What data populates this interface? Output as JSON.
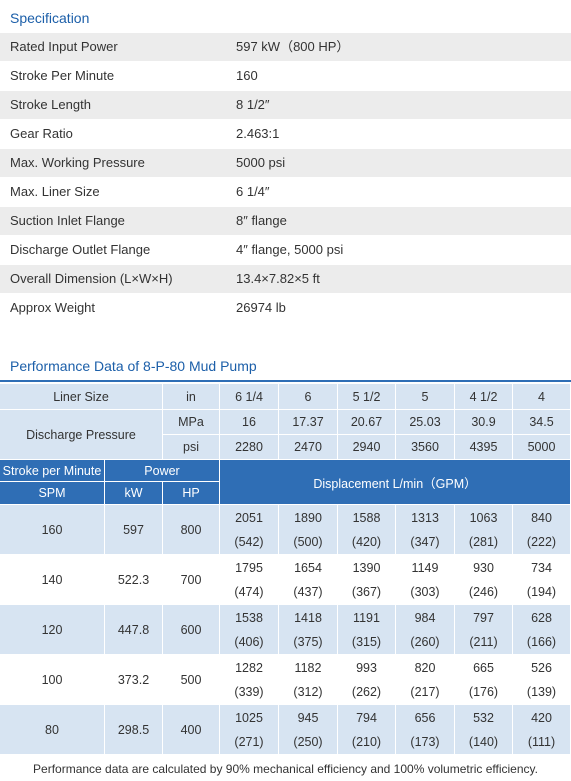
{
  "specification": {
    "title": "Specification",
    "rows": [
      [
        "Rated Input Power",
        "597 kW（800 HP）"
      ],
      [
        "Stroke Per Minute",
        "160"
      ],
      [
        "Stroke Length",
        "8 1/2″"
      ],
      [
        "Gear Ratio",
        "2.463:1"
      ],
      [
        "Max. Working Pressure",
        "5000 psi"
      ],
      [
        "Max. Liner Size",
        "6 1/4″"
      ],
      [
        "Suction Inlet Flange",
        "8″  flange"
      ],
      [
        "Discharge Outlet Flange",
        "4″ flange, 5000 psi"
      ],
      [
        "Overall Dimension (L×W×H)",
        "13.4×7.82×5 ft"
      ],
      [
        "Approx Weight",
        "26974 lb"
      ]
    ]
  },
  "performance": {
    "title": "Performance Data of 8-P-80 Mud Pump",
    "liner_size": {
      "label": "Liner Size",
      "unit": "in",
      "values": [
        "6 1/4",
        "6",
        "5 1/2",
        "5",
        "4 1/2",
        "4"
      ]
    },
    "discharge_pressure": {
      "label": "Discharge Pressure",
      "units": [
        "MPa",
        "psi"
      ],
      "mpa": [
        16,
        17.37,
        20.67,
        25.03,
        30.9,
        34.5
      ],
      "psi": [
        2280,
        2470,
        2940,
        3560,
        4395,
        5000
      ]
    },
    "header": {
      "stroke": "Stroke per Minute",
      "spm": "SPM",
      "power": "Power",
      "kw": "kW",
      "hp": "HP",
      "displacement": "Displacement  L/min（GPM）"
    },
    "rows": [
      {
        "spm": 160,
        "kw": 597,
        "hp": 800,
        "lpm": [
          2051,
          1890,
          1588,
          1313,
          1063,
          840
        ],
        "gpm": [
          "(542)",
          "(500)",
          "(420)",
          "(347)",
          "(281)",
          "(222)"
        ]
      },
      {
        "spm": 140,
        "kw": 522.3,
        "hp": 700,
        "lpm": [
          1795,
          1654,
          1390,
          1149,
          930,
          734
        ],
        "gpm": [
          "(474)",
          "(437)",
          "(367)",
          "(303)",
          "(246)",
          "(194)"
        ]
      },
      {
        "spm": 120,
        "kw": 447.8,
        "hp": 600,
        "lpm": [
          1538,
          1418,
          1191,
          984,
          797,
          628
        ],
        "gpm": [
          "(406)",
          "(375)",
          "(315)",
          "(260)",
          "(211)",
          "(166)"
        ]
      },
      {
        "spm": 100,
        "kw": 373.2,
        "hp": 500,
        "lpm": [
          1282,
          1182,
          993,
          820,
          665,
          526
        ],
        "gpm": [
          "(339)",
          "(312)",
          "(262)",
          "(217)",
          "(176)",
          "(139)"
        ]
      },
      {
        "spm": 80,
        "kw": 298.5,
        "hp": 400,
        "lpm": [
          1025,
          945,
          794,
          656,
          532,
          420
        ],
        "gpm": [
          "(271)",
          "(250)",
          "(210)",
          "(173)",
          "(140)",
          "(111)"
        ]
      }
    ],
    "footnote": "Performance data are calculated by 90% mechanical efficiency and 100% volumetric efficiency."
  }
}
